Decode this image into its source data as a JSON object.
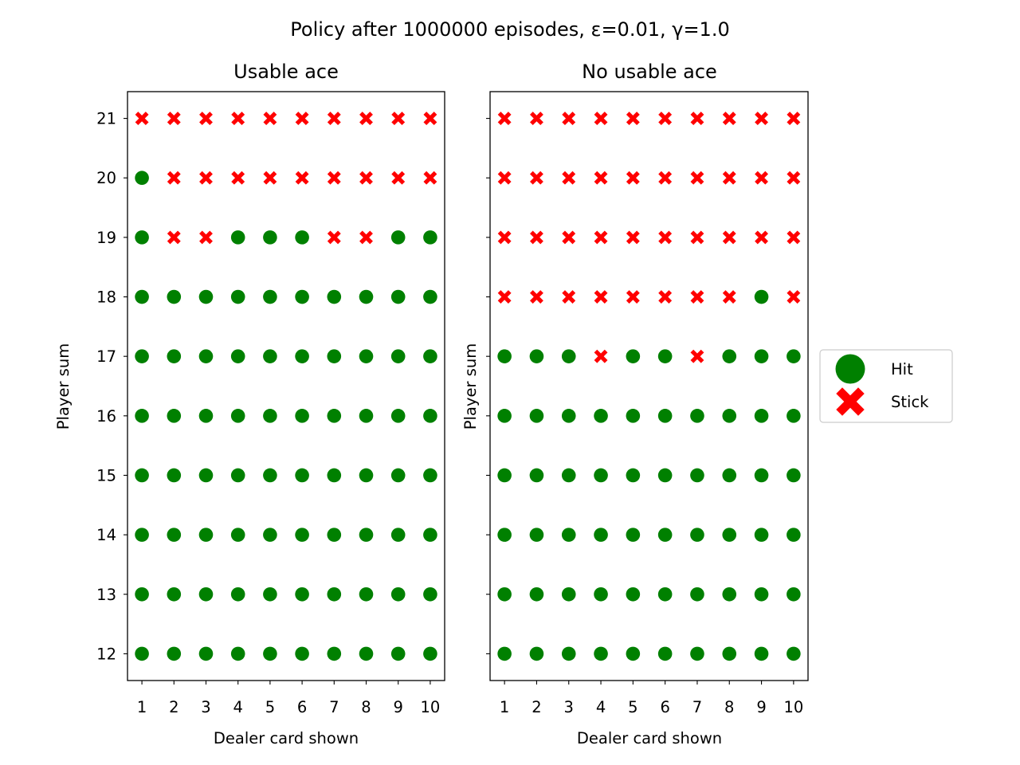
{
  "figure": {
    "suptitle": "Policy after 1000000 episodes, ε=0.01, γ=1.0"
  },
  "legend": {
    "placement": "right",
    "entries": [
      {
        "label": "Hit",
        "action": 1,
        "marker": "circle",
        "color": "#008000"
      },
      {
        "label": "Stick",
        "action": 0,
        "marker": "x",
        "color": "#ff0000"
      }
    ]
  },
  "chart_data": [
    {
      "type": "scatter",
      "title": "Usable ace",
      "xlabel": "Dealer card shown",
      "ylabel": "Player sum",
      "x_ticks": [
        "1",
        "2",
        "3",
        "4",
        "5",
        "6",
        "7",
        "8",
        "9",
        "10"
      ],
      "y_ticks": [
        "12",
        "13",
        "14",
        "15",
        "16",
        "17",
        "18",
        "19",
        "20",
        "21"
      ],
      "xlim": [
        0.55,
        10.45
      ],
      "ylim": [
        11.55,
        21.45
      ],
      "show_ytick_labels": true,
      "grid": false,
      "policy_rows": [
        {
          "player_sum": 21,
          "actions": [
            0,
            0,
            0,
            0,
            0,
            0,
            0,
            0,
            0,
            0
          ]
        },
        {
          "player_sum": 20,
          "actions": [
            1,
            0,
            0,
            0,
            0,
            0,
            0,
            0,
            0,
            0
          ]
        },
        {
          "player_sum": 19,
          "actions": [
            1,
            0,
            0,
            1,
            1,
            1,
            0,
            0,
            1,
            1
          ]
        },
        {
          "player_sum": 18,
          "actions": [
            1,
            1,
            1,
            1,
            1,
            1,
            1,
            1,
            1,
            1
          ]
        },
        {
          "player_sum": 17,
          "actions": [
            1,
            1,
            1,
            1,
            1,
            1,
            1,
            1,
            1,
            1
          ]
        },
        {
          "player_sum": 16,
          "actions": [
            1,
            1,
            1,
            1,
            1,
            1,
            1,
            1,
            1,
            1
          ]
        },
        {
          "player_sum": 15,
          "actions": [
            1,
            1,
            1,
            1,
            1,
            1,
            1,
            1,
            1,
            1
          ]
        },
        {
          "player_sum": 14,
          "actions": [
            1,
            1,
            1,
            1,
            1,
            1,
            1,
            1,
            1,
            1
          ]
        },
        {
          "player_sum": 13,
          "actions": [
            1,
            1,
            1,
            1,
            1,
            1,
            1,
            1,
            1,
            1
          ]
        },
        {
          "player_sum": 12,
          "actions": [
            1,
            1,
            1,
            1,
            1,
            1,
            1,
            1,
            1,
            1
          ]
        }
      ]
    },
    {
      "type": "scatter",
      "title": "No usable ace",
      "xlabel": "Dealer card shown",
      "ylabel": "Player sum",
      "x_ticks": [
        "1",
        "2",
        "3",
        "4",
        "5",
        "6",
        "7",
        "8",
        "9",
        "10"
      ],
      "y_ticks": [
        "12",
        "13",
        "14",
        "15",
        "16",
        "17",
        "18",
        "19",
        "20",
        "21"
      ],
      "xlim": [
        0.55,
        10.45
      ],
      "ylim": [
        11.55,
        21.45
      ],
      "show_ytick_labels": false,
      "grid": false,
      "policy_rows": [
        {
          "player_sum": 21,
          "actions": [
            0,
            0,
            0,
            0,
            0,
            0,
            0,
            0,
            0,
            0
          ]
        },
        {
          "player_sum": 20,
          "actions": [
            0,
            0,
            0,
            0,
            0,
            0,
            0,
            0,
            0,
            0
          ]
        },
        {
          "player_sum": 19,
          "actions": [
            0,
            0,
            0,
            0,
            0,
            0,
            0,
            0,
            0,
            0
          ]
        },
        {
          "player_sum": 18,
          "actions": [
            0,
            0,
            0,
            0,
            0,
            0,
            0,
            0,
            1,
            0
          ]
        },
        {
          "player_sum": 17,
          "actions": [
            1,
            1,
            1,
            0,
            1,
            1,
            0,
            1,
            1,
            1
          ]
        },
        {
          "player_sum": 16,
          "actions": [
            1,
            1,
            1,
            1,
            1,
            1,
            1,
            1,
            1,
            1
          ]
        },
        {
          "player_sum": 15,
          "actions": [
            1,
            1,
            1,
            1,
            1,
            1,
            1,
            1,
            1,
            1
          ]
        },
        {
          "player_sum": 14,
          "actions": [
            1,
            1,
            1,
            1,
            1,
            1,
            1,
            1,
            1,
            1
          ]
        },
        {
          "player_sum": 13,
          "actions": [
            1,
            1,
            1,
            1,
            1,
            1,
            1,
            1,
            1,
            1
          ]
        },
        {
          "player_sum": 12,
          "actions": [
            1,
            1,
            1,
            1,
            1,
            1,
            1,
            1,
            1,
            1
          ]
        }
      ]
    }
  ]
}
